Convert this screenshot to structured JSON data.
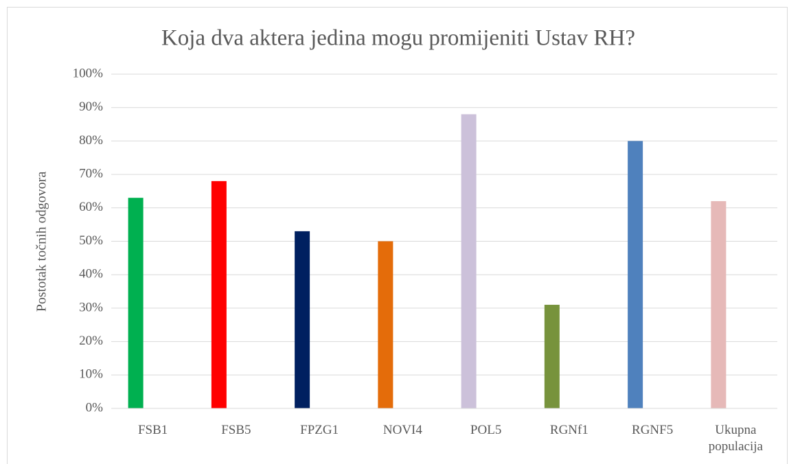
{
  "chart_data": {
    "type": "bar",
    "title": "Koja dva aktera jedina mogu promijeniti Ustav RH?",
    "y_label": "Postotak točnih odgovora",
    "categories": [
      "FSB1",
      "FSB5",
      "FPZG1",
      "NOVI4",
      "POL5",
      "RGNf1",
      "RGNF5",
      "Ukupna populacija"
    ],
    "values": [
      63,
      68,
      53,
      50,
      88,
      31,
      80,
      62
    ],
    "colors": [
      "#00b050",
      "#ff0000",
      "#002060",
      "#e46c0a",
      "#ccc1da",
      "#77933c",
      "#4f81bd",
      "#e6b9b8"
    ],
    "ylim": [
      0,
      100
    ],
    "yticks": [
      {
        "value": 0,
        "label": "0%"
      },
      {
        "value": 10,
        "label": "10%"
      },
      {
        "value": 20,
        "label": "20%"
      },
      {
        "value": 30,
        "label": "30%"
      },
      {
        "value": 40,
        "label": "40%"
      },
      {
        "value": 50,
        "label": "50%"
      },
      {
        "value": 60,
        "label": "60%"
      },
      {
        "value": 70,
        "label": "70%"
      },
      {
        "value": 80,
        "label": "80%"
      },
      {
        "value": 90,
        "label": "90%"
      },
      {
        "value": 100,
        "label": "100%"
      }
    ],
    "grid": true
  }
}
